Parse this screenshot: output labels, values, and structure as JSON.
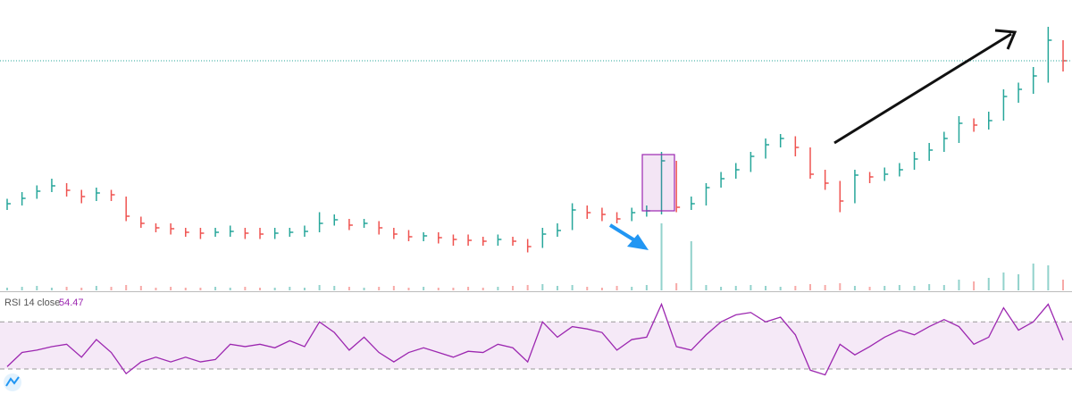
{
  "chart_data": {
    "type": "ohlc",
    "ylim": [
      0,
      130
    ],
    "close": [
      38.8,
      41.2,
      44.4,
      46.8,
      44.8,
      42,
      43.6,
      42.8,
      33.2,
      30,
      28,
      27.6,
      26,
      25.6,
      26,
      26.4,
      25.6,
      25.2,
      25.6,
      26,
      26.4,
      30,
      31.6,
      29.2,
      30,
      28,
      25.2,
      24,
      24.4,
      23.6,
      22.8,
      22.4,
      22,
      22.8,
      22,
      19.6,
      25.2,
      26.8,
      36,
      34.8,
      34,
      32,
      34.8,
      35.6,
      58,
      37.2,
      38.8,
      46,
      50,
      54,
      60,
      65.2,
      68,
      64,
      52,
      48,
      40,
      51.6,
      50.8,
      52,
      54,
      58.8,
      62.8,
      68,
      74.8,
      74,
      76,
      86.8,
      90,
      96,
      112,
      102.8
    ],
    "high": [
      41,
      44,
      47,
      50,
      48,
      45,
      46,
      45,
      42,
      33,
      30,
      30,
      28,
      28,
      28,
      29,
      28,
      28,
      28,
      28,
      29,
      35,
      34,
      32,
      32,
      31,
      28,
      27,
      26,
      26,
      25,
      25,
      24,
      25,
      24,
      23,
      28,
      30,
      39,
      38,
      37,
      35,
      37,
      38,
      62,
      58,
      42,
      48,
      53,
      57,
      62,
      68,
      70,
      69,
      64,
      54,
      49,
      54,
      53,
      55,
      57,
      62,
      66,
      71,
      78,
      77,
      80,
      90,
      93,
      100,
      118,
      112
    ],
    "low": [
      36,
      38,
      41,
      44,
      42,
      39,
      40,
      40,
      31,
      28,
      26,
      25,
      24,
      23,
      24,
      24,
      23,
      23,
      23,
      24,
      24,
      26,
      29,
      27,
      28,
      25,
      23,
      22,
      22,
      21,
      20,
      20,
      20,
      20,
      20,
      17,
      19,
      24,
      27,
      32,
      31,
      30,
      31,
      33,
      34,
      35,
      36,
      38,
      46,
      50,
      53,
      59,
      64,
      60,
      50,
      45,
      35,
      39,
      48,
      49,
      51,
      54,
      58,
      62,
      66,
      71,
      72,
      76,
      84,
      88,
      93,
      98
    ],
    "up_color": "#26a69a",
    "down_color": "#ef5350",
    "volume": {
      "vlim": [
        0,
        100
      ],
      "values": [
        3,
        4,
        5,
        3,
        4,
        3,
        5,
        4,
        6,
        5,
        3,
        4,
        3,
        3,
        4,
        3,
        4,
        3,
        3,
        4,
        3,
        6,
        5,
        4,
        3,
        4,
        5,
        3,
        4,
        3,
        3,
        4,
        3,
        4,
        5,
        6,
        7,
        5,
        6,
        4,
        3,
        5,
        4,
        6,
        75,
        8,
        55,
        6,
        4,
        5,
        6,
        5,
        4,
        5,
        7,
        6,
        8,
        5,
        4,
        5,
        6,
        5,
        7,
        6,
        12,
        10,
        14,
        20,
        18,
        30,
        28,
        12
      ]
    },
    "rsi": {
      "name": "RSI 14 close",
      "color": "#9c27b0",
      "ylim": [
        11,
        93
      ],
      "bands": [
        30,
        70
      ],
      "values": [
        32,
        44,
        46,
        49,
        51,
        40,
        55,
        44,
        26,
        36,
        40,
        36,
        40,
        36,
        38,
        51,
        49,
        51,
        48,
        54,
        49,
        70,
        61,
        46,
        57,
        44,
        36,
        44,
        48,
        44,
        40,
        45,
        44,
        51,
        48,
        36,
        70,
        57,
        66,
        64,
        61,
        46,
        55,
        57,
        85,
        49,
        46,
        59,
        70,
        76,
        78,
        70,
        74,
        59,
        29,
        25,
        51,
        42,
        49,
        57,
        63,
        59,
        66,
        72,
        66,
        51,
        57,
        82,
        63,
        70,
        85,
        54.47
      ]
    }
  }
}
